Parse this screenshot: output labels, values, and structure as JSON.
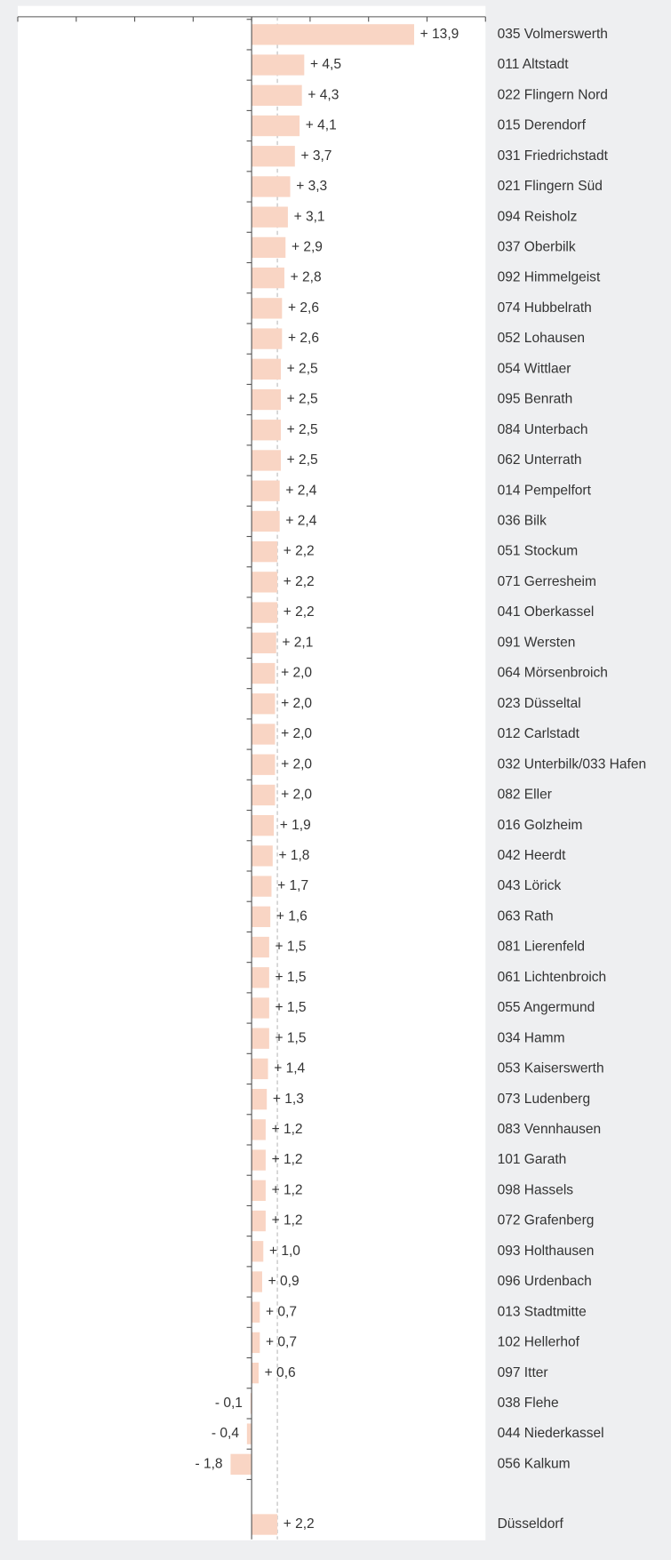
{
  "chart_data": {
    "type": "barh",
    "categories": [
      "035 Volmerswerth",
      "011 Altstadt",
      "022 Flingern Nord",
      "015 Derendorf",
      "031 Friedrichstadt",
      "021 Flingern Süd",
      "094 Reisholz",
      "037 Oberbilk",
      "092 Himmelgeist",
      "074 Hubbelrath",
      "052 Lohausen",
      "054 Wittlaer",
      "095 Benrath",
      "084 Unterbach",
      "062 Unterrath",
      "014 Pempelfort",
      "036 Bilk",
      "051 Stockum",
      "071 Gerresheim",
      "041 Oberkassel",
      "091 Wersten",
      "064 Mörsenbroich",
      "023 Düsseltal",
      "012 Carlstadt",
      "032 Unterbilk/033 Hafen",
      "082 Eller",
      "016 Golzheim",
      "042 Heerdt",
      "043 Lörick",
      "063 Rath",
      "081 Lierenfeld",
      "061 Lichtenbroich",
      "055 Angermund",
      "034 Hamm",
      "053 Kaiserswerth",
      "073 Ludenberg",
      "083 Vennhausen",
      "101 Garath",
      "098 Hassels",
      "072 Grafenberg",
      "093 Holthausen",
      "096 Urdenbach",
      "013 Stadtmitte",
      "102 Hellerhof",
      "097 Itter",
      "038 Flehe",
      "044 Niederkassel",
      "056 Kalkum"
    ],
    "values": [
      13.9,
      4.5,
      4.3,
      4.1,
      3.7,
      3.3,
      3.1,
      2.9,
      2.8,
      2.6,
      2.6,
      2.5,
      2.5,
      2.5,
      2.5,
      2.4,
      2.4,
      2.2,
      2.2,
      2.2,
      2.1,
      2.0,
      2.0,
      2.0,
      2.0,
      2.0,
      1.9,
      1.8,
      1.7,
      1.6,
      1.5,
      1.5,
      1.5,
      1.5,
      1.4,
      1.3,
      1.2,
      1.2,
      1.2,
      1.2,
      1.0,
      0.9,
      0.7,
      0.7,
      0.6,
      -0.1,
      -0.4,
      -1.8
    ],
    "value_labels": [
      "+ 13,9",
      "+ 4,5",
      "+ 4,3",
      "+ 4,1",
      "+ 3,7",
      "+ 3,3",
      "+ 3,1",
      "+ 2,9",
      "+ 2,8",
      "+ 2,6",
      "+ 2,6",
      "+ 2,5",
      "+ 2,5",
      "+ 2,5",
      "+ 2,5",
      "+ 2,4",
      "+ 2,4",
      "+ 2,2",
      "+ 2,2",
      "+ 2,2",
      "+ 2,1",
      "+ 2,0",
      "+ 2,0",
      "+ 2,0",
      "+ 2,0",
      "+ 2,0",
      "+ 1,9",
      "+ 1,8",
      "+ 1,7",
      "+ 1,6",
      "+ 1,5",
      "+ 1,5",
      "+ 1,5",
      "+ 1,5",
      "+ 1,4",
      "+ 1,3",
      "+ 1,2",
      "+ 1,2",
      "+ 1,2",
      "+ 1,2",
      "+ 1,0",
      "+ 0,9",
      "+ 0,7",
      "+ 0,7",
      "+ 0,6",
      "- 0,1",
      "- 0,4",
      "- 1,8"
    ],
    "total": {
      "name": "Düsseldorf",
      "value": 2.2,
      "value_label": "+ 2,2"
    },
    "color": "#f9d5c4",
    "xlim": [
      -20,
      20
    ],
    "xticks": [
      -20,
      -15,
      -10,
      -5,
      0,
      5,
      10,
      15,
      20
    ]
  }
}
